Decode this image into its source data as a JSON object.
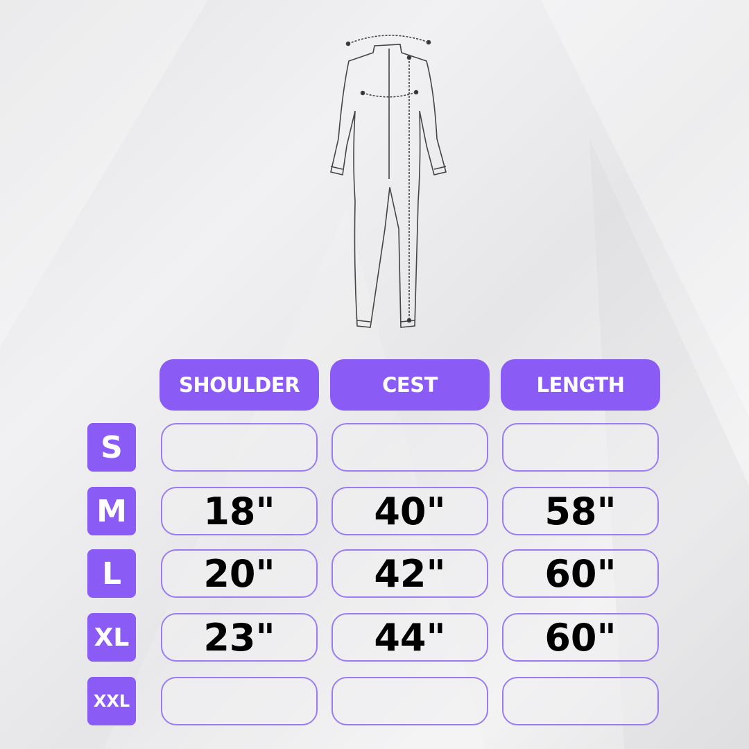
{
  "colors": {
    "accent": "#8a5cf5",
    "cell_border": "#9a7cf0"
  },
  "illustration": "jumpsuit-measurement-diagram",
  "headers": [
    "SHOULDER",
    "CEST",
    "LENGTH"
  ],
  "rows": [
    {
      "size": "S",
      "values": [
        "",
        "",
        ""
      ]
    },
    {
      "size": "M",
      "values": [
        "18\"",
        "40\"",
        "58\""
      ]
    },
    {
      "size": "L",
      "values": [
        "20\"",
        "42\"",
        "60\""
      ]
    },
    {
      "size": "XL",
      "values": [
        "23\"",
        "44\"",
        "60\""
      ]
    },
    {
      "size": "XXL",
      "values": [
        "",
        "",
        ""
      ]
    }
  ]
}
